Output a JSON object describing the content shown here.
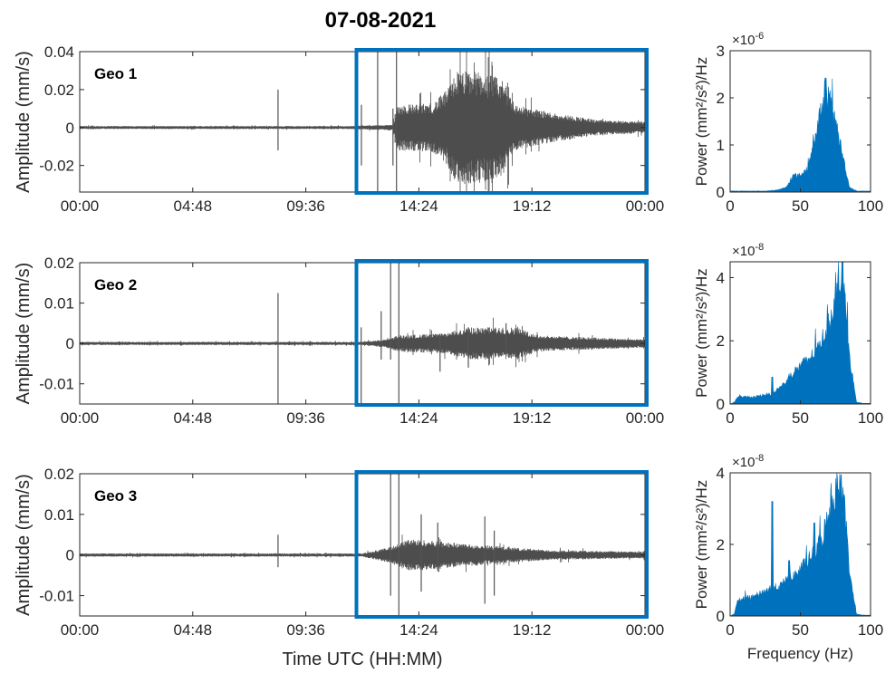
{
  "chart_data": {
    "title": "07-08-2021",
    "type": "line",
    "colors": {
      "waveform": "#4d4d4d",
      "spectrum": "#0072bd",
      "highlight_box": "#0072bd"
    },
    "grid": false,
    "waveforms": [
      {
        "label": "Geo 1",
        "ylabel": "Amplitude (mm/s)",
        "xlabel": "",
        "ylim": [
          -0.034,
          0.04
        ],
        "yticks": [
          0.04,
          0.02,
          0,
          -0.02
        ],
        "ytick_labels": [
          "0.04",
          "0.02",
          "0",
          "-0.02"
        ],
        "xlim_hours": [
          0,
          24
        ],
        "xtick_labels": [
          "00:00",
          "04:48",
          "09:36",
          "14:24",
          "19:12",
          "00:00"
        ],
        "highlight_hours": [
          11.75,
          24
        ],
        "envelope": {
          "hours": [
            0,
            11.5,
            12,
            13.3,
            13.5,
            15,
            15.6,
            16,
            17,
            18,
            18.5,
            20,
            21,
            22,
            24
          ],
          "amplitude": [
            0.0008,
            0.0008,
            0.001,
            0.0015,
            0.012,
            0.013,
            0.02,
            0.03,
            0.03,
            0.025,
            0.012,
            0.008,
            0.006,
            0.004,
            0.003
          ]
        },
        "spikes": [
          [
            8.42,
            0.02,
            -0.012
          ],
          [
            11.96,
            0.012,
            -0.02
          ],
          [
            12.65,
            0.04,
            -0.034
          ],
          [
            13.3,
            0.01,
            -0.02
          ],
          [
            13.45,
            0.04,
            -0.034
          ]
        ]
      },
      {
        "label": "Geo 2",
        "ylabel": "Amplitude (mm/s)",
        "xlabel": "",
        "ylim": [
          -0.015,
          0.02
        ],
        "yticks": [
          0.02,
          0.01,
          0,
          -0.01
        ],
        "ytick_labels": [
          "0.02",
          "0.01",
          "0",
          "-0.01"
        ],
        "xlim_hours": [
          0,
          24
        ],
        "xtick_labels": [
          "00:00",
          "04:48",
          "09:36",
          "14:24",
          "19:12",
          "00:00"
        ],
        "highlight_hours": [
          11.75,
          24
        ],
        "envelope": {
          "hours": [
            0,
            12,
            13,
            13.5,
            15.5,
            16.5,
            18.5,
            19.5,
            24
          ],
          "amplitude": [
            0.0004,
            0.0004,
            0.001,
            0.002,
            0.0025,
            0.004,
            0.004,
            0.002,
            0.001
          ]
        },
        "spikes": [
          [
            8.42,
            0.0125,
            -0.015
          ],
          [
            11.95,
            0.004,
            -0.015
          ],
          [
            12.8,
            0.008,
            -0.004
          ],
          [
            13.2,
            0.02,
            -0.004
          ],
          [
            13.55,
            0.02,
            -0.015
          ],
          [
            15.3,
            0.002,
            -0.007
          ],
          [
            16.5,
            0.004,
            -0.006
          ],
          [
            18.1,
            0.005,
            -0.002
          ]
        ]
      },
      {
        "label": "Geo 3",
        "ylabel": "Amplitude (mm/s)",
        "xlabel": "Time UTC (HH:MM)",
        "ylim": [
          -0.015,
          0.02
        ],
        "yticks": [
          0.02,
          0.01,
          0,
          -0.01
        ],
        "ytick_labels": [
          "0.02",
          "0.01",
          "0",
          "-0.01"
        ],
        "xlim_hours": [
          0,
          24
        ],
        "xtick_labels": [
          "00:00",
          "04:48",
          "09:36",
          "14:24",
          "19:12",
          "00:00"
        ],
        "highlight_hours": [
          11.75,
          24
        ],
        "envelope": {
          "hours": [
            0,
            12,
            13.2,
            14,
            16,
            18,
            20,
            24
          ],
          "amplitude": [
            0.0004,
            0.0004,
            0.002,
            0.004,
            0.003,
            0.002,
            0.0012,
            0.0008
          ]
        },
        "spikes": [
          [
            8.42,
            0.005,
            -0.003
          ],
          [
            13.2,
            0.02,
            -0.01
          ],
          [
            13.55,
            0.02,
            -0.015
          ],
          [
            14.5,
            0.01,
            -0.009
          ],
          [
            15.2,
            0.008,
            -0.004
          ],
          [
            17.2,
            0.0095,
            -0.012
          ],
          [
            17.6,
            0.006,
            -0.01
          ]
        ]
      }
    ],
    "spectra": [
      {
        "type": "area",
        "ylabel": "Power (mm²/s²)/Hz",
        "exponent": "×10",
        "exponent_power": "-6",
        "xlabel": "",
        "xlim": [
          0,
          100
        ],
        "xtick_labels": [
          "0",
          "50",
          "100"
        ],
        "ylim": [
          0,
          3
        ],
        "yticks": [
          0,
          1,
          2,
          3
        ],
        "ytick_labels": [
          "0",
          "1",
          "2",
          "3"
        ],
        "freq": [
          0,
          5,
          10,
          15,
          20,
          25,
          30,
          35,
          40,
          45,
          50,
          55,
          60,
          65,
          68,
          70,
          75,
          80,
          85,
          90,
          95,
          100
        ],
        "power": [
          0.02,
          0.02,
          0.02,
          0.02,
          0.02,
          0.02,
          0.03,
          0.05,
          0.1,
          0.35,
          0.35,
          0.5,
          1.0,
          1.8,
          2.2,
          2.0,
          1.5,
          0.8,
          0.1,
          0.02,
          0.02,
          0.02
        ],
        "peaks": [
          [
            68,
            2.42
          ]
        ]
      },
      {
        "type": "area",
        "ylabel": "Power (mm²/s²)/Hz",
        "exponent": "×10",
        "exponent_power": "-8",
        "xlabel": "",
        "xlim": [
          0,
          100
        ],
        "xtick_labels": [
          "0",
          "50",
          "100"
        ],
        "ylim": [
          0,
          4.5
        ],
        "yticks": [
          0,
          2,
          4
        ],
        "ytick_labels": [
          "0",
          "2",
          "4"
        ],
        "freq": [
          0,
          3,
          5,
          10,
          15,
          20,
          25,
          30,
          35,
          40,
          45,
          50,
          55,
          60,
          65,
          70,
          75,
          80,
          85,
          90,
          95,
          100
        ],
        "power": [
          0,
          0.05,
          0.2,
          0.25,
          0.2,
          0.25,
          0.3,
          0.3,
          0.5,
          0.7,
          1.0,
          1.2,
          1.4,
          1.6,
          2.0,
          2.5,
          3.3,
          4.2,
          1.5,
          0.05,
          0.02,
          0.02
        ],
        "peaks": [
          [
            30,
            0.85
          ],
          [
            80,
            4.5
          ]
        ]
      },
      {
        "type": "area",
        "ylabel": "Power (mm²/s²)/Hz",
        "exponent": "×10",
        "exponent_power": "-8",
        "xlabel": "Frequency (Hz)",
        "xlim": [
          0,
          100
        ],
        "xtick_labels": [
          "0",
          "50",
          "100"
        ],
        "ylim": [
          0,
          4
        ],
        "yticks": [
          0,
          2,
          4
        ],
        "ytick_labels": [
          "0",
          "2",
          "4"
        ],
        "freq": [
          0,
          3,
          5,
          10,
          15,
          20,
          25,
          30,
          35,
          40,
          45,
          50,
          55,
          60,
          65,
          70,
          75,
          80,
          85,
          90,
          95,
          100
        ],
        "power": [
          0,
          0.05,
          0.4,
          0.5,
          0.5,
          0.6,
          0.7,
          0.8,
          0.8,
          1.0,
          1.1,
          1.3,
          1.5,
          1.8,
          2.1,
          2.8,
          3.4,
          3.8,
          1.2,
          0.05,
          0.02,
          0.02
        ],
        "peaks": [
          [
            30,
            3.2
          ],
          [
            42,
            1.55
          ],
          [
            60,
            2.6
          ],
          [
            79,
            3.95
          ]
        ]
      }
    ]
  }
}
